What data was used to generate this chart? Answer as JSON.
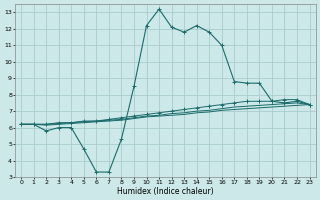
{
  "title": "",
  "xlabel": "Humidex (Indice chaleur)",
  "bg_color": "#cce8e8",
  "grid_color": "#aacccc",
  "line_color": "#1a6b6b",
  "xlim": [
    -0.5,
    23.5
  ],
  "ylim": [
    3,
    13.5
  ],
  "xticks": [
    0,
    1,
    2,
    3,
    4,
    5,
    6,
    7,
    8,
    9,
    10,
    11,
    12,
    13,
    14,
    15,
    16,
    17,
    18,
    19,
    20,
    21,
    22,
    23
  ],
  "yticks": [
    3,
    4,
    5,
    6,
    7,
    8,
    9,
    10,
    11,
    12,
    13
  ],
  "line1_x": [
    0,
    1,
    2,
    3,
    4,
    5,
    6,
    7,
    8,
    9,
    10,
    11,
    12,
    13,
    14,
    15,
    16,
    17,
    18,
    19,
    20,
    21,
    22,
    23
  ],
  "line1_y": [
    6.2,
    6.2,
    5.8,
    6.0,
    6.0,
    4.7,
    3.3,
    3.3,
    5.3,
    8.5,
    12.2,
    13.2,
    12.1,
    11.8,
    12.2,
    11.8,
    11.0,
    8.8,
    8.7,
    8.7,
    7.6,
    7.5,
    7.6,
    7.4
  ],
  "line2_x": [
    0,
    1,
    2,
    3,
    4,
    5,
    6,
    7,
    8,
    9,
    10,
    11,
    12,
    13,
    14,
    15,
    16,
    17,
    18,
    19,
    20,
    21,
    22,
    23
  ],
  "line2_y": [
    6.2,
    6.2,
    6.2,
    6.3,
    6.3,
    6.4,
    6.4,
    6.5,
    6.6,
    6.7,
    6.8,
    6.9,
    7.0,
    7.1,
    7.2,
    7.3,
    7.4,
    7.5,
    7.6,
    7.6,
    7.6,
    7.7,
    7.7,
    7.4
  ],
  "line3_x": [
    0,
    1,
    2,
    3,
    4,
    5,
    6,
    7,
    8,
    9,
    10,
    11,
    12,
    13,
    14,
    15,
    16,
    17,
    18,
    19,
    20,
    21,
    22,
    23
  ],
  "line3_y": [
    6.2,
    6.2,
    6.2,
    6.25,
    6.3,
    6.35,
    6.4,
    6.45,
    6.5,
    6.6,
    6.7,
    6.75,
    6.85,
    6.9,
    7.0,
    7.05,
    7.15,
    7.25,
    7.3,
    7.35,
    7.4,
    7.45,
    7.5,
    7.4
  ],
  "line4_x": [
    0,
    1,
    2,
    3,
    4,
    5,
    6,
    7,
    8,
    9,
    10,
    11,
    12,
    13,
    14,
    15,
    16,
    17,
    18,
    19,
    20,
    21,
    22,
    23
  ],
  "line4_y": [
    6.2,
    6.2,
    6.15,
    6.2,
    6.25,
    6.3,
    6.35,
    6.4,
    6.45,
    6.55,
    6.65,
    6.7,
    6.75,
    6.8,
    6.9,
    6.95,
    7.05,
    7.1,
    7.15,
    7.2,
    7.25,
    7.3,
    7.35,
    7.4
  ]
}
